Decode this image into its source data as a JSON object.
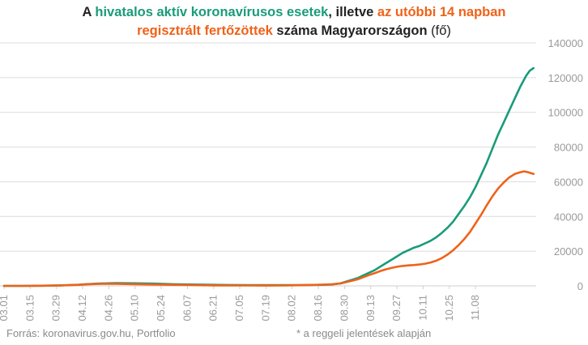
{
  "title": {
    "line1": [
      {
        "text": "A ",
        "style": "normal"
      },
      {
        "text": "hivatalos aktív koronavírusos esetek",
        "style": "green"
      },
      {
        "text": ", illetve ",
        "style": "normal"
      },
      {
        "text": "az utóbbi 14 napban",
        "style": "orange"
      }
    ],
    "line2": [
      {
        "text": "regisztrált fertőzöttek",
        "style": "orange"
      },
      {
        "text": " száma Magyarországon ",
        "style": "normal"
      },
      {
        "text": "(fő)",
        "style": "light"
      }
    ]
  },
  "footer": {
    "source": "Forrás: koronavirus.gov.hu, Portfolio",
    "note": "* a reggeli jelentések alapján"
  },
  "colors": {
    "active": "#1a9b7a",
    "fourteen_day": "#ef6219",
    "grid": "#dcdcdc",
    "axis_text": "#9a9a9a"
  },
  "chart_data": {
    "type": "line",
    "x_ticks": [
      "03.01",
      "03.15",
      "03.29",
      "04.12",
      "04.26",
      "05.10",
      "05.24",
      "06.07",
      "06.21",
      "07.05",
      "07.19",
      "08.02",
      "08.16",
      "08.30",
      "09.13",
      "09.27",
      "10.11",
      "10.25",
      "11.08"
    ],
    "y_ticks": [
      0,
      20000,
      40000,
      60000,
      80000,
      100000,
      120000,
      140000
    ],
    "ylim": [
      0,
      140000
    ],
    "y_axis_side": "right",
    "grid": true,
    "series": [
      {
        "key": "active",
        "points": [
          [
            0,
            0
          ],
          [
            10,
            10
          ],
          [
            20,
            100
          ],
          [
            30,
            300
          ],
          [
            40,
            700
          ],
          [
            44,
            1000
          ],
          [
            50,
            1300
          ],
          [
            56,
            1500
          ],
          [
            60,
            1600
          ],
          [
            70,
            1500
          ],
          [
            80,
            1300
          ],
          [
            90,
            1000
          ],
          [
            100,
            800
          ],
          [
            112,
            600
          ],
          [
            120,
            500
          ],
          [
            130,
            450
          ],
          [
            140,
            400
          ],
          [
            150,
            400
          ],
          [
            160,
            450
          ],
          [
            170,
            600
          ],
          [
            175,
            800
          ],
          [
            180,
            1500
          ],
          [
            183,
            2500
          ],
          [
            186,
            3500
          ],
          [
            189,
            4500
          ],
          [
            192,
            6000
          ],
          [
            195,
            7500
          ],
          [
            198,
            9000
          ],
          [
            201,
            11000
          ],
          [
            204,
            13000
          ],
          [
            207,
            15000
          ],
          [
            210,
            17000
          ],
          [
            213,
            19000
          ],
          [
            216,
            20500
          ],
          [
            219,
            22000
          ],
          [
            222,
            23000
          ],
          [
            225,
            24500
          ],
          [
            228,
            26000
          ],
          [
            231,
            28000
          ],
          [
            234,
            30500
          ],
          [
            237,
            33500
          ],
          [
            240,
            37000
          ],
          [
            243,
            41500
          ],
          [
            246,
            46000
          ],
          [
            249,
            51000
          ],
          [
            252,
            57000
          ],
          [
            255,
            64000
          ],
          [
            258,
            71000
          ],
          [
            261,
            79000
          ],
          [
            264,
            87000
          ],
          [
            267,
            94000
          ],
          [
            270,
            101000
          ],
          [
            273,
            108000
          ],
          [
            276,
            115000
          ],
          [
            279,
            121000
          ],
          [
            281,
            124000
          ],
          [
            283,
            125500
          ]
        ]
      },
      {
        "key": "fourteen_day",
        "points": [
          [
            0,
            0
          ],
          [
            10,
            10
          ],
          [
            20,
            80
          ],
          [
            30,
            250
          ],
          [
            40,
            600
          ],
          [
            44,
            900
          ],
          [
            50,
            1100
          ],
          [
            56,
            1200
          ],
          [
            60,
            1200
          ],
          [
            70,
            1000
          ],
          [
            80,
            800
          ],
          [
            90,
            600
          ],
          [
            100,
            450
          ],
          [
            112,
            300
          ],
          [
            120,
            250
          ],
          [
            130,
            220
          ],
          [
            140,
            200
          ],
          [
            150,
            250
          ],
          [
            160,
            400
          ],
          [
            170,
            700
          ],
          [
            175,
            900
          ],
          [
            180,
            1400
          ],
          [
            183,
            2200
          ],
          [
            186,
            3000
          ],
          [
            189,
            3800
          ],
          [
            192,
            5000
          ],
          [
            195,
            6200
          ],
          [
            198,
            7300
          ],
          [
            201,
            8500
          ],
          [
            204,
            9500
          ],
          [
            207,
            10300
          ],
          [
            210,
            11000
          ],
          [
            213,
            11500
          ],
          [
            216,
            11800
          ],
          [
            219,
            12000
          ],
          [
            222,
            12300
          ],
          [
            225,
            12800
          ],
          [
            228,
            13500
          ],
          [
            231,
            14500
          ],
          [
            234,
            16000
          ],
          [
            237,
            18000
          ],
          [
            240,
            20500
          ],
          [
            243,
            23500
          ],
          [
            246,
            27000
          ],
          [
            249,
            31000
          ],
          [
            252,
            36000
          ],
          [
            255,
            41000
          ],
          [
            258,
            46500
          ],
          [
            261,
            51500
          ],
          [
            264,
            56000
          ],
          [
            267,
            59500
          ],
          [
            270,
            62500
          ],
          [
            273,
            64500
          ],
          [
            276,
            65500
          ],
          [
            278,
            66000
          ],
          [
            280,
            65500
          ],
          [
            283,
            64500
          ]
        ]
      }
    ]
  }
}
